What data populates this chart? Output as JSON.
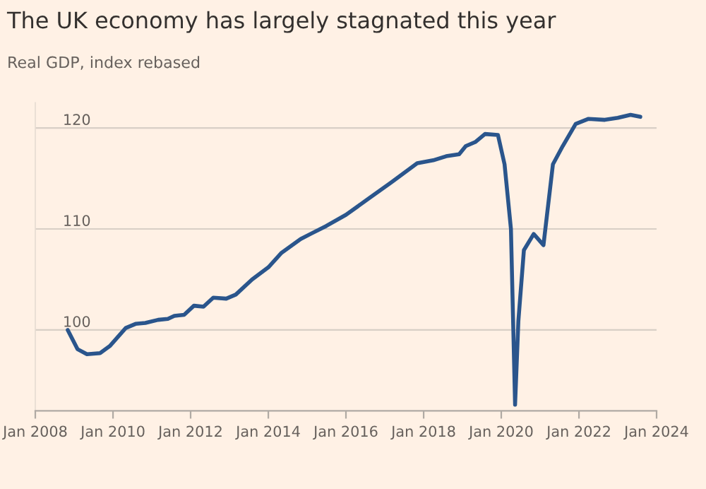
{
  "chart_data": {
    "type": "line",
    "title": "The UK economy has largely stagnated this year",
    "subtitle": "Real GDP, index rebased",
    "x": [
      "2008-11",
      "2009-02",
      "2009-05",
      "2009-09",
      "2009-12",
      "2010-05",
      "2010-08",
      "2010-11",
      "2011-03",
      "2011-06",
      "2011-08",
      "2011-11",
      "2012-02",
      "2012-05",
      "2012-08",
      "2012-12",
      "2013-03",
      "2013-08",
      "2014-01",
      "2014-05",
      "2014-11",
      "2015-02",
      "2015-07",
      "2016-01",
      "2016-08",
      "2017-03",
      "2017-11",
      "2018-04",
      "2018-08",
      "2018-12",
      "2019-02",
      "2019-05",
      "2019-08",
      "2019-12",
      "2020-02",
      "2020-04",
      "2020-05-10",
      "2020-06-10",
      "2020-08",
      "2020-11",
      "2021-02",
      "2021-05",
      "2021-08",
      "2021-12",
      "2022-04",
      "2022-09",
      "2023-01",
      "2023-05",
      "2023-08"
    ],
    "series": [
      {
        "color": "#2a558c",
        "values": [
          100,
          98.1,
          97.6,
          97.7,
          98.4,
          100.2,
          100.6,
          100.7,
          101.0,
          101.1,
          101.4,
          101.5,
          102.4,
          102.3,
          103.2,
          103.1,
          103.5,
          105.0,
          106.2,
          107.6,
          109.0,
          109.5,
          110.3,
          111.4,
          113.0,
          114.6,
          116.5,
          116.8,
          117.2,
          117.4,
          118.2,
          118.6,
          119.4,
          119.3,
          116.4,
          110.0,
          92.6,
          100.9,
          107.9,
          109.5,
          108.4,
          116.4,
          118.2,
          120.4,
          120.9,
          120.8,
          121.0,
          121.3,
          121.1
        ]
      }
    ],
    "xlim": [
      "2008-01",
      "2024-01"
    ],
    "xticks": [
      {
        "value": "2008-01",
        "label": "Jan 2008"
      },
      {
        "value": "2010-01",
        "label": "Jan 2010"
      },
      {
        "value": "2012-01",
        "label": "Jan 2012"
      },
      {
        "value": "2014-01",
        "label": "Jan 2014"
      },
      {
        "value": "2016-01",
        "label": "Jan 2016"
      },
      {
        "value": "2018-01",
        "label": "Jan 2018"
      },
      {
        "value": "2020-01",
        "label": "Jan 2020"
      },
      {
        "value": "2022-01",
        "label": "Jan 2022"
      },
      {
        "value": "2024-01",
        "label": "Jan 2024"
      }
    ],
    "ylim": [
      92,
      122.5
    ],
    "yticks": [
      100,
      110,
      120
    ],
    "grid": "y",
    "marker": "none",
    "line_style": "solid"
  }
}
